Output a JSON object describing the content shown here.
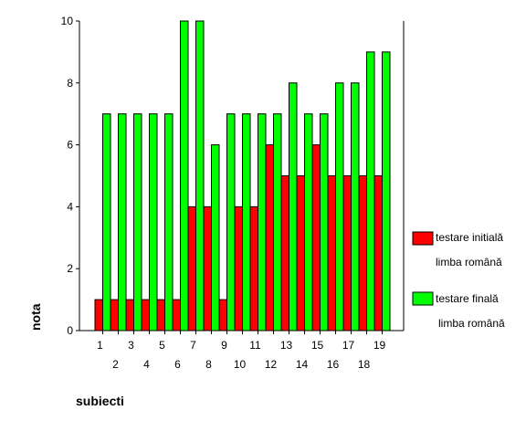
{
  "chart_data": {
    "type": "bar",
    "categories": [
      "1",
      "2",
      "3",
      "4",
      "5",
      "6",
      "7",
      "8",
      "9",
      "10",
      "11",
      "12",
      "13",
      "14",
      "15",
      "16",
      "17",
      "18",
      "19"
    ],
    "series": [
      {
        "name": "testare initială limba română",
        "color": "#ff0000",
        "values": [
          1,
          1,
          1,
          1,
          1,
          1,
          4,
          4,
          1,
          4,
          4,
          6,
          5,
          5,
          6,
          5,
          5,
          5,
          5
        ]
      },
      {
        "name": "testare finală limba română",
        "color": "#00ff00",
        "values": [
          7,
          7,
          7,
          7,
          7,
          10,
          10,
          6,
          7,
          7,
          7,
          7,
          8,
          7,
          7,
          8,
          8,
          9,
          9
        ]
      }
    ],
    "xlabel": "subiecti",
    "ylabel": "nota",
    "ylim": [
      0,
      10
    ],
    "yticks": [
      0,
      2,
      4,
      6,
      8,
      10
    ],
    "grid": false,
    "legend": {
      "placement": "right",
      "entries": [
        {
          "line1": "testare initială",
          "line2": "limba română",
          "color": "#ff0000"
        },
        {
          "line1": "testare finală",
          "line2": "limba română",
          "color": "#00ff00"
        }
      ]
    }
  }
}
